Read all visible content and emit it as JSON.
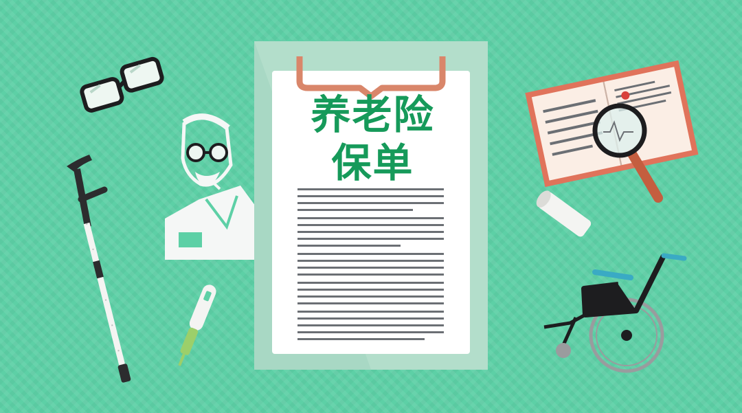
{
  "document": {
    "title_line1": "养老险",
    "title_line2": "保单"
  },
  "colors": {
    "background": "#5dd0a6",
    "title": "#169a5a",
    "clip": "#d9866a",
    "text_lines": "#6b6f74"
  },
  "icons": [
    "glasses-icon",
    "crutch-icon",
    "elderly-man-icon",
    "thermometer-icon",
    "clipboard-icon",
    "medical-report-icon",
    "magnifier-icon",
    "paper-roll-icon",
    "wheelchair-icon"
  ]
}
